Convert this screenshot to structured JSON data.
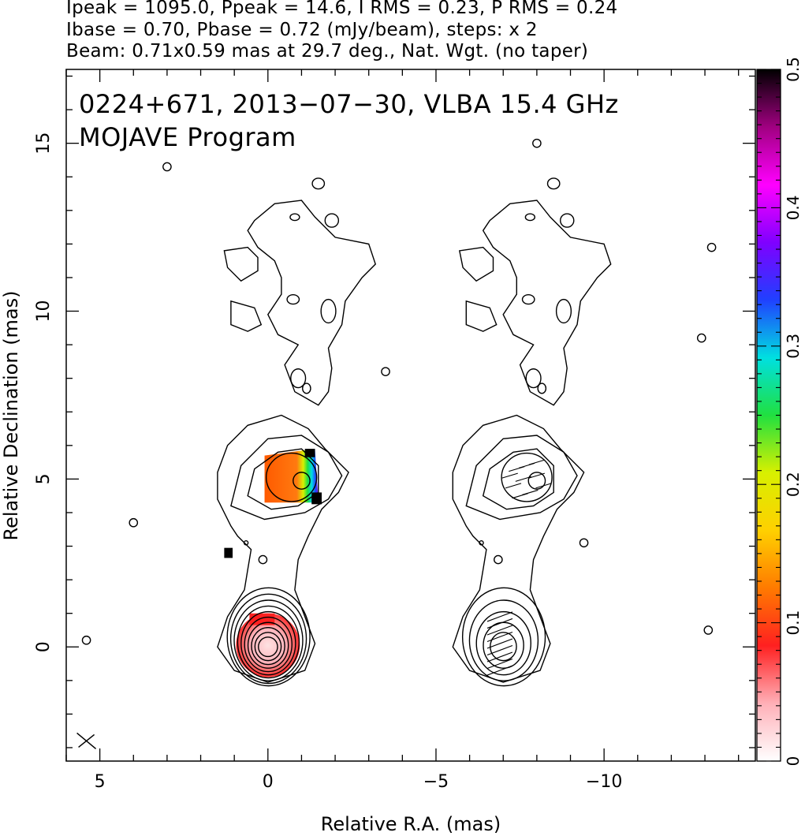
{
  "header": {
    "line1": "Ipeak = 1095.0, Ppeak = 14.6, I RMS = 0.23, P RMS = 0.24",
    "line2": "Ibase = 0.70, Pbase = 0.72 (mJy/beam), steps: x 2",
    "line3": "Beam: 0.71x0.59 mas at 29.7 deg., Nat. Wgt. (no taper)"
  },
  "chart_data": {
    "type": "heatmap",
    "title": "0224+671, 2013−07−30, VLBA 15.4 GHz",
    "subtitle": "MOJAVE Program",
    "xlabel": "Relative R.A. (mas)",
    "ylabel": "Relative Declination (mas)",
    "xlim": [
      6,
      -14.5
    ],
    "ylim": [
      -3.4,
      17.2
    ],
    "x_ticks": [
      5,
      0,
      -5,
      -10
    ],
    "x_tick_labels": [
      "5",
      "0",
      "−5",
      "−10"
    ],
    "y_ticks": [
      0,
      5,
      10,
      15
    ],
    "y_tick_labels": [
      "0",
      "5",
      "10",
      "15"
    ],
    "colorbar": {
      "range": [
        0,
        0.5
      ],
      "ticks": [
        0,
        0.1,
        0.2,
        0.3,
        0.4,
        0.5
      ],
      "tick_labels": [
        "0",
        "0.1",
        "0.2",
        "0.3",
        "0.4",
        "0.5"
      ],
      "colors": [
        "#ffffff",
        "#ffb0b8",
        "#ff2020",
        "#ff7a00",
        "#ffd000",
        "#d8f000",
        "#20e040",
        "#00e0e0",
        "#2040ff",
        "#8000ff",
        "#ff00ff",
        "#a00080",
        "#000000"
      ]
    },
    "panels": [
      {
        "name": "intensity-with-fractional-polarization",
        "ra_offset": 0
      },
      {
        "name": "intensity-with-evpa-vectors",
        "ra_offset": -7
      }
    ],
    "core": {
      "ra": 0,
      "dec": 0,
      "levels": 10
    },
    "knot": {
      "ra": -0.9,
      "dec": 5.1,
      "levels": 5
    },
    "frac_pol_core": {
      "ra": 0,
      "dec": 0,
      "value": 0.1
    },
    "frac_pol_knot": {
      "ra": -0.6,
      "dec": 5.0,
      "value": 0.12,
      "edge_value": 0.35
    },
    "beam": {
      "major": 0.71,
      "minor": 0.59,
      "pa_deg": 29.7
    }
  }
}
